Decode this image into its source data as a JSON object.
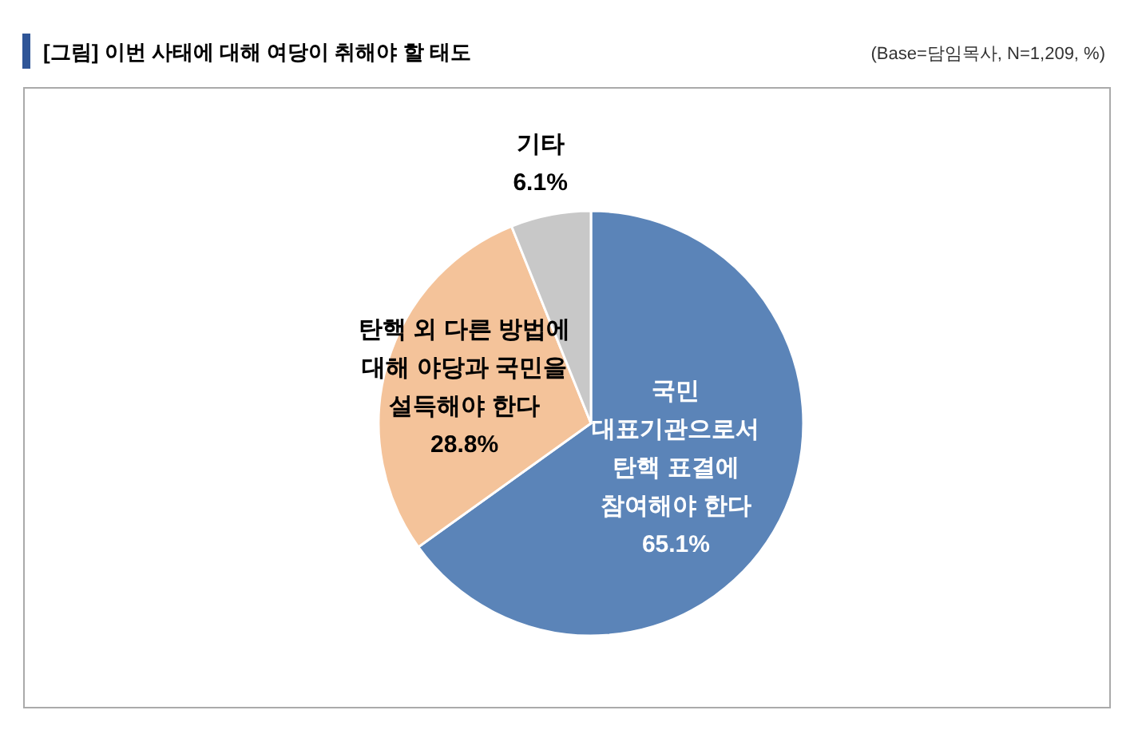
{
  "chart_data": {
    "type": "pie",
    "title": "[그림] 이번 사태에 대해 여당이 취해야 할 태도",
    "annotations": [
      "(Base=담임목사, N=1,209, %)"
    ],
    "categories": [
      "국민\n대표기관으로서\n탄핵 표결에\n참여해야 한다",
      "탄핵 외 다른 방법에\n대해 야당과 국민을\n설득해야 한다",
      "기타"
    ],
    "values": [
      65.1,
      28.8,
      6.1
    ],
    "value_labels": [
      "65.1%",
      "28.8%",
      "6.1%"
    ],
    "colors": [
      "#5b84b8",
      "#f4c39a",
      "#c8c8c8"
    ]
  }
}
